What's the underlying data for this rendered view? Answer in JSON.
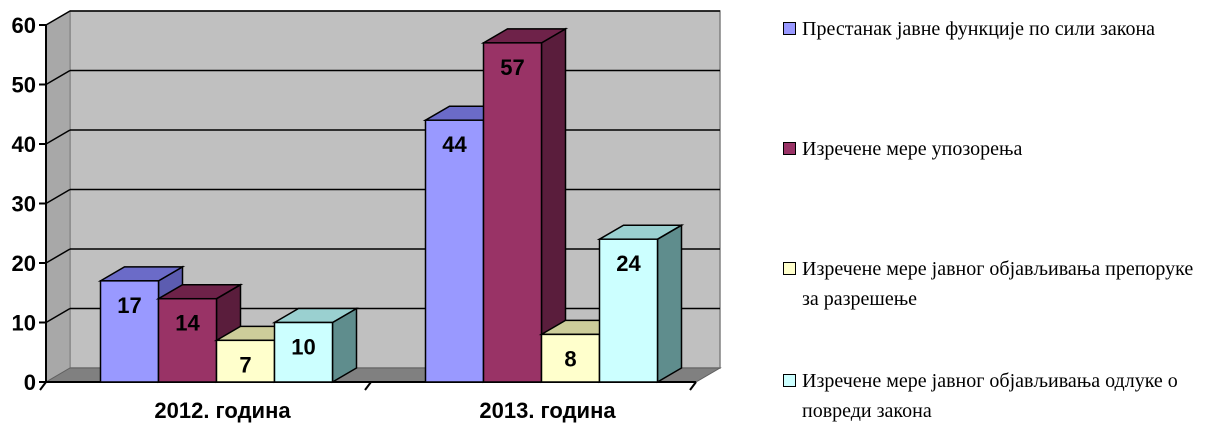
{
  "chart_data": {
    "type": "bar",
    "categories": [
      "2012. година",
      "2013. година"
    ],
    "series": [
      {
        "name": "Престанак јавне функције по сили закона",
        "values": [
          17,
          44
        ],
        "color": "#9999ff",
        "top": "#6b6bc8",
        "side": "#5c5cb0"
      },
      {
        "name": "Изречене мере упозорења",
        "values": [
          14,
          57
        ],
        "color": "#993366",
        "top": "#6e2249",
        "side": "#5a1d3c"
      },
      {
        "name": "Изречене мере јавног објављивања препоруке за разрешење",
        "values": [
          7,
          8
        ],
        "color": "#ffffcc",
        "top": "#cdcd9a",
        "side": "#b4b48a"
      },
      {
        "name": "Изречене мере јавног објављивања одлуке о повреди закона",
        "values": [
          10,
          24
        ],
        "color": "#ccffff",
        "top": "#9ad0d0",
        "side": "#5f8d8d"
      }
    ],
    "ylim": [
      0,
      60
    ],
    "yticks": [
      "0",
      "10",
      "20",
      "30",
      "40",
      "50",
      "60"
    ],
    "grid": true,
    "legend": "right",
    "wall_color": "#c0c0c0",
    "floor_color": "#808080"
  }
}
